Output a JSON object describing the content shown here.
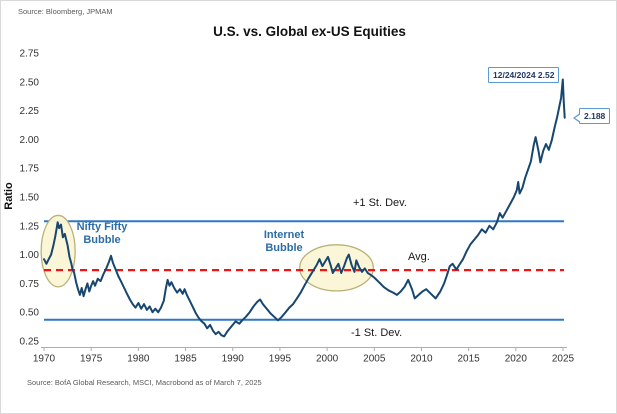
{
  "header": {
    "source_top": "Source: Bloomberg, JPMAM"
  },
  "footer": {
    "source_bottom": "Source: BofA Global Research, MSCI, Macrobond as of March 7, 2025"
  },
  "labels": {
    "plus_one_sd": "+1 St. Dev.",
    "avg": "Avg.",
    "minus_one_sd": "-1 St. Dev.",
    "nifty_bubble": "Nifty Fifty\nBubble",
    "internet_bubble": "Internet\nBubble"
  },
  "callouts": {
    "peak": "12/24/2024 2.52",
    "last": "2.188"
  },
  "colors": {
    "series": "#17466f",
    "band_line": "#2e78c2",
    "avg_line": "#f21414",
    "ellipse_fill": "#faf6d6",
    "ellipse_stroke": "#b9b278",
    "axis": "#adadad",
    "tick_text": "#333333",
    "bubble_text": "#2e6da4",
    "callout_border": "#5b9bd5",
    "callout_text": "#1f3864"
  },
  "chart_data": {
    "type": "line",
    "title": "U.S. vs. Global ex-US Equities",
    "xlabel": "",
    "ylabel": "Ratio",
    "xlim": [
      1970,
      2025.4
    ],
    "ylim": [
      0.25,
      2.75
    ],
    "grid": false,
    "yticks": [
      2.75,
      2.5,
      2.25,
      2.0,
      1.75,
      1.5,
      1.25,
      1.0,
      0.75,
      0.5,
      0.25
    ],
    "xticks": [
      1970,
      1975,
      1980,
      1985,
      1990,
      1995,
      2000,
      2005,
      2010,
      2015,
      2020,
      2025
    ],
    "reference_lines": [
      {
        "name": "plus_one_sd",
        "label": "+1 St. Dev.",
        "value": 1.29,
        "style": "solid",
        "color": "#2e78c2"
      },
      {
        "name": "avg",
        "label": "Avg.",
        "value": 0.865,
        "style": "dashed",
        "color": "#f21414"
      },
      {
        "name": "minus_one_sd",
        "label": "-1 St. Dev.",
        "value": 0.435,
        "style": "solid",
        "color": "#2e78c2"
      }
    ],
    "highlight_ellipses": [
      {
        "name": "nifty-fifty",
        "label": "Nifty Fifty Bubble",
        "center": [
          1971.5,
          1.03
        ],
        "rx_years": 1.8,
        "ry_value": 0.31
      },
      {
        "name": "internet",
        "label": "Internet Bubble",
        "center": [
          2001.0,
          0.885
        ],
        "rx_years": 3.9,
        "ry_value": 0.2
      }
    ],
    "annotations": [
      {
        "text": "12/24/2024 2.52",
        "x": 2024.98,
        "y": 2.52
      },
      {
        "text": "2.188",
        "x": 2025.18,
        "y": 2.188
      }
    ],
    "series": [
      {
        "name": "U.S. vs Global ex-US equity ratio",
        "color": "#17466f",
        "points": [
          [
            1970.0,
            0.96
          ],
          [
            1970.25,
            0.92
          ],
          [
            1970.5,
            0.96
          ],
          [
            1970.75,
            1.0
          ],
          [
            1971.0,
            1.08
          ],
          [
            1971.2,
            1.16
          ],
          [
            1971.45,
            1.28
          ],
          [
            1971.6,
            1.23
          ],
          [
            1971.8,
            1.26
          ],
          [
            1972.0,
            1.15
          ],
          [
            1972.2,
            1.18
          ],
          [
            1972.5,
            1.08
          ],
          [
            1972.7,
            0.98
          ],
          [
            1972.9,
            0.92
          ],
          [
            1973.0,
            0.88
          ],
          [
            1973.2,
            0.84
          ],
          [
            1973.4,
            0.76
          ],
          [
            1973.6,
            0.7
          ],
          [
            1973.8,
            0.65
          ],
          [
            1974.0,
            0.71
          ],
          [
            1974.2,
            0.64
          ],
          [
            1974.4,
            0.7
          ],
          [
            1974.6,
            0.75
          ],
          [
            1974.8,
            0.68
          ],
          [
            1975.0,
            0.73
          ],
          [
            1975.2,
            0.77
          ],
          [
            1975.4,
            0.73
          ],
          [
            1975.7,
            0.79
          ],
          [
            1976.0,
            0.77
          ],
          [
            1976.3,
            0.83
          ],
          [
            1976.6,
            0.88
          ],
          [
            1976.9,
            0.94
          ],
          [
            1977.1,
            0.99
          ],
          [
            1977.3,
            0.93
          ],
          [
            1977.6,
            0.87
          ],
          [
            1977.9,
            0.81
          ],
          [
            1978.2,
            0.76
          ],
          [
            1978.5,
            0.71
          ],
          [
            1978.8,
            0.66
          ],
          [
            1979.1,
            0.61
          ],
          [
            1979.4,
            0.57
          ],
          [
            1979.7,
            0.54
          ],
          [
            1980.0,
            0.58
          ],
          [
            1980.3,
            0.53
          ],
          [
            1980.6,
            0.57
          ],
          [
            1980.9,
            0.52
          ],
          [
            1981.2,
            0.55
          ],
          [
            1981.5,
            0.5
          ],
          [
            1981.8,
            0.53
          ],
          [
            1982.1,
            0.5
          ],
          [
            1982.4,
            0.54
          ],
          [
            1982.7,
            0.6
          ],
          [
            1982.9,
            0.7
          ],
          [
            1983.1,
            0.78
          ],
          [
            1983.3,
            0.73
          ],
          [
            1983.5,
            0.76
          ],
          [
            1983.8,
            0.71
          ],
          [
            1984.1,
            0.67
          ],
          [
            1984.4,
            0.7
          ],
          [
            1984.7,
            0.66
          ],
          [
            1984.9,
            0.7
          ],
          [
            1985.2,
            0.64
          ],
          [
            1985.5,
            0.59
          ],
          [
            1985.8,
            0.54
          ],
          [
            1986.1,
            0.49
          ],
          [
            1986.4,
            0.45
          ],
          [
            1986.7,
            0.42
          ],
          [
            1987.0,
            0.4
          ],
          [
            1987.3,
            0.36
          ],
          [
            1987.6,
            0.39
          ],
          [
            1987.9,
            0.34
          ],
          [
            1988.2,
            0.31
          ],
          [
            1988.5,
            0.33
          ],
          [
            1988.8,
            0.3
          ],
          [
            1989.1,
            0.29
          ],
          [
            1989.4,
            0.33
          ],
          [
            1989.7,
            0.36
          ],
          [
            1990.0,
            0.39
          ],
          [
            1990.3,
            0.42
          ],
          [
            1990.7,
            0.4
          ],
          [
            1991.0,
            0.43
          ],
          [
            1991.4,
            0.46
          ],
          [
            1991.8,
            0.5
          ],
          [
            1992.2,
            0.55
          ],
          [
            1992.6,
            0.59
          ],
          [
            1992.9,
            0.61
          ],
          [
            1993.2,
            0.57
          ],
          [
            1993.6,
            0.53
          ],
          [
            1994.0,
            0.49
          ],
          [
            1994.4,
            0.46
          ],
          [
            1994.8,
            0.43
          ],
          [
            1995.2,
            0.46
          ],
          [
            1995.6,
            0.5
          ],
          [
            1996.0,
            0.54
          ],
          [
            1996.4,
            0.57
          ],
          [
            1996.8,
            0.62
          ],
          [
            1997.2,
            0.67
          ],
          [
            1997.6,
            0.73
          ],
          [
            1998.0,
            0.79
          ],
          [
            1998.3,
            0.83
          ],
          [
            1998.6,
            0.87
          ],
          [
            1998.9,
            0.91
          ],
          [
            1999.2,
            0.96
          ],
          [
            1999.5,
            0.9
          ],
          [
            1999.8,
            0.94
          ],
          [
            2000.1,
            0.98
          ],
          [
            2000.4,
            0.9
          ],
          [
            2000.6,
            0.84
          ],
          [
            2000.9,
            0.88
          ],
          [
            2001.2,
            0.92
          ],
          [
            2001.5,
            0.84
          ],
          [
            2001.8,
            0.9
          ],
          [
            2002.1,
            0.97
          ],
          [
            2002.3,
            1.0
          ],
          [
            2002.6,
            0.91
          ],
          [
            2002.9,
            0.85
          ],
          [
            2003.1,
            0.95
          ],
          [
            2003.4,
            0.89
          ],
          [
            2003.7,
            0.85
          ],
          [
            2004.0,
            0.88
          ],
          [
            2004.3,
            0.84
          ],
          [
            2004.7,
            0.82
          ],
          [
            2005.0,
            0.8
          ],
          [
            2005.5,
            0.76
          ],
          [
            2006.0,
            0.72
          ],
          [
            2006.5,
            0.69
          ],
          [
            2007.0,
            0.67
          ],
          [
            2007.4,
            0.65
          ],
          [
            2007.8,
            0.68
          ],
          [
            2008.2,
            0.72
          ],
          [
            2008.6,
            0.78
          ],
          [
            2009.0,
            0.7
          ],
          [
            2009.3,
            0.62
          ],
          [
            2009.7,
            0.65
          ],
          [
            2010.1,
            0.68
          ],
          [
            2010.5,
            0.7
          ],
          [
            2011.0,
            0.66
          ],
          [
            2011.5,
            0.62
          ],
          [
            2012.0,
            0.68
          ],
          [
            2012.4,
            0.75
          ],
          [
            2012.7,
            0.82
          ],
          [
            2013.0,
            0.9
          ],
          [
            2013.3,
            0.92
          ],
          [
            2013.7,
            0.87
          ],
          [
            2014.0,
            0.91
          ],
          [
            2014.4,
            0.96
          ],
          [
            2014.8,
            1.03
          ],
          [
            2015.2,
            1.09
          ],
          [
            2015.6,
            1.13
          ],
          [
            2016.0,
            1.17
          ],
          [
            2016.4,
            1.22
          ],
          [
            2016.8,
            1.19
          ],
          [
            2017.2,
            1.25
          ],
          [
            2017.6,
            1.22
          ],
          [
            2018.0,
            1.28
          ],
          [
            2018.3,
            1.36
          ],
          [
            2018.6,
            1.32
          ],
          [
            2019.0,
            1.38
          ],
          [
            2019.4,
            1.44
          ],
          [
            2019.8,
            1.5
          ],
          [
            2020.1,
            1.56
          ],
          [
            2020.25,
            1.63
          ],
          [
            2020.4,
            1.53
          ],
          [
            2020.7,
            1.58
          ],
          [
            2021.0,
            1.67
          ],
          [
            2021.3,
            1.74
          ],
          [
            2021.6,
            1.81
          ],
          [
            2021.9,
            1.95
          ],
          [
            2022.1,
            2.02
          ],
          [
            2022.4,
            1.9
          ],
          [
            2022.6,
            1.8
          ],
          [
            2022.9,
            1.9
          ],
          [
            2023.2,
            1.96
          ],
          [
            2023.5,
            1.91
          ],
          [
            2023.8,
            1.99
          ],
          [
            2024.1,
            2.1
          ],
          [
            2024.4,
            2.2
          ],
          [
            2024.6,
            2.28
          ],
          [
            2024.8,
            2.36
          ],
          [
            2024.98,
            2.52
          ],
          [
            2025.08,
            2.32
          ],
          [
            2025.18,
            2.188
          ]
        ]
      }
    ]
  }
}
